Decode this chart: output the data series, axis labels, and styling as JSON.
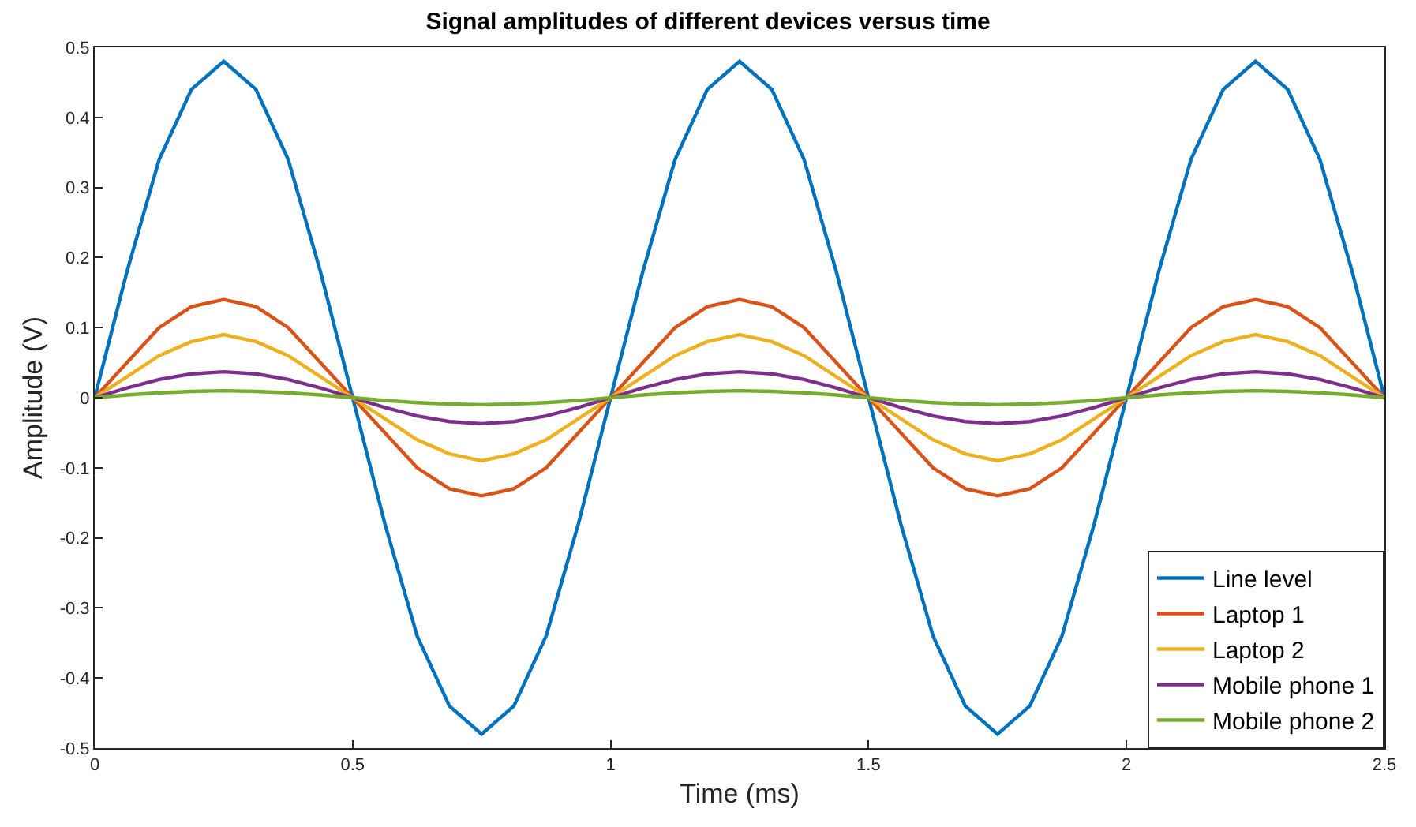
{
  "chart_data": {
    "type": "line",
    "title": "Signal amplitudes of different devices versus time",
    "xlabel": "Time (ms)",
    "ylabel": "Amplitude (V)",
    "x": [
      0,
      0.0625,
      0.125,
      0.1875,
      0.25,
      0.3125,
      0.375,
      0.4375,
      0.5,
      0.5625,
      0.625,
      0.6875,
      0.75,
      0.8125,
      0.875,
      0.9375,
      1,
      1.0625,
      1.125,
      1.1875,
      1.25,
      1.3125,
      1.375,
      1.4375,
      1.5,
      1.5625,
      1.625,
      1.6875,
      1.75,
      1.8125,
      1.875,
      1.9375,
      2,
      2.0625,
      2.125,
      2.1875,
      2.25,
      2.3125,
      2.375,
      2.4375,
      2.5
    ],
    "series": [
      {
        "name": "Line level",
        "color": "#0072bd",
        "values": [
          0,
          0.18,
          0.34,
          0.44,
          0.48,
          0.44,
          0.34,
          0.18,
          0,
          -0.18,
          -0.34,
          -0.44,
          -0.48,
          -0.44,
          -0.34,
          -0.18,
          0,
          0.18,
          0.34,
          0.44,
          0.48,
          0.44,
          0.34,
          0.18,
          0,
          -0.18,
          -0.34,
          -0.44,
          -0.48,
          -0.44,
          -0.34,
          -0.18,
          0,
          0.18,
          0.34,
          0.44,
          0.48,
          0.44,
          0.34,
          0.18,
          0
        ]
      },
      {
        "name": "Laptop 1",
        "color": "#d95319",
        "values": [
          0,
          0.05,
          0.1,
          0.13,
          0.14,
          0.13,
          0.1,
          0.05,
          0,
          -0.05,
          -0.1,
          -0.13,
          -0.14,
          -0.13,
          -0.1,
          -0.05,
          0,
          0.05,
          0.1,
          0.13,
          0.14,
          0.13,
          0.1,
          0.05,
          0,
          -0.05,
          -0.1,
          -0.13,
          -0.14,
          -0.13,
          -0.1,
          -0.05,
          0,
          0.05,
          0.1,
          0.13,
          0.14,
          0.13,
          0.1,
          0.05,
          0
        ]
      },
      {
        "name": "Laptop 2",
        "color": "#edb120",
        "values": [
          0,
          0.03,
          0.06,
          0.08,
          0.09,
          0.08,
          0.06,
          0.03,
          0,
          -0.03,
          -0.06,
          -0.08,
          -0.09,
          -0.08,
          -0.06,
          -0.03,
          0,
          0.03,
          0.06,
          0.08,
          0.09,
          0.08,
          0.06,
          0.03,
          0,
          -0.03,
          -0.06,
          -0.08,
          -0.09,
          -0.08,
          -0.06,
          -0.03,
          0,
          0.03,
          0.06,
          0.08,
          0.09,
          0.08,
          0.06,
          0.03,
          0
        ]
      },
      {
        "name": "Mobile phone 1",
        "color": "#7e2f8e",
        "values": [
          0,
          0.014,
          0.026,
          0.034,
          0.037,
          0.034,
          0.026,
          0.014,
          0,
          -0.014,
          -0.026,
          -0.034,
          -0.037,
          -0.034,
          -0.026,
          -0.014,
          0,
          0.014,
          0.026,
          0.034,
          0.037,
          0.034,
          0.026,
          0.014,
          0,
          -0.014,
          -0.026,
          -0.034,
          -0.037,
          -0.034,
          -0.026,
          -0.014,
          0,
          0.014,
          0.026,
          0.034,
          0.037,
          0.034,
          0.026,
          0.014,
          0
        ]
      },
      {
        "name": "Mobile phone 2",
        "color": "#77ac30",
        "values": [
          0,
          0.004,
          0.007,
          0.009,
          0.01,
          0.009,
          0.007,
          0.004,
          0,
          -0.004,
          -0.007,
          -0.009,
          -0.01,
          -0.009,
          -0.007,
          -0.004,
          0,
          0.004,
          0.007,
          0.009,
          0.01,
          0.009,
          0.007,
          0.004,
          0,
          -0.004,
          -0.007,
          -0.009,
          -0.01,
          -0.009,
          -0.007,
          -0.004,
          0,
          0.004,
          0.007,
          0.009,
          0.01,
          0.009,
          0.007,
          0.004,
          0
        ]
      }
    ],
    "xlim": [
      0,
      2.5
    ],
    "xticks": [
      0,
      0.5,
      1,
      1.5,
      2,
      2.5
    ],
    "ylim": [
      -0.5,
      0.5
    ],
    "yticks": [
      -0.5,
      -0.4,
      -0.3,
      -0.2,
      -0.1,
      0,
      0.1,
      0.2,
      0.3,
      0.4,
      0.5
    ],
    "grid": false,
    "legend": "bottom right",
    "marker": "none",
    "line_style": "solid"
  }
}
